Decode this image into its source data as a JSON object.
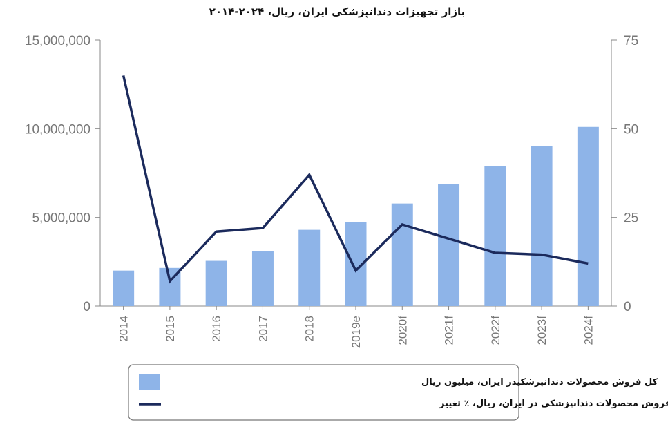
{
  "chart_data": {
    "type": "bar+line",
    "title": "بازار تجهیزات دندانپزشکی ایران، ریال، ۲۰۲۴-۲۰۱۴",
    "categories": [
      "2014",
      "2015",
      "2016",
      "2017",
      "2018",
      "2019e",
      "2020f",
      "2021f",
      "2022f",
      "2023f",
      "2024f"
    ],
    "series": [
      {
        "name": "کل فروش محصولات دندانپزشکیدر ایران، میلیون ریال",
        "type": "bar",
        "axis": "left",
        "color": "#8eb4e8",
        "values": [
          2000000,
          2150000,
          2550000,
          3100000,
          4300000,
          4750000,
          5780000,
          6870000,
          7900000,
          9000000,
          10100000
        ]
      },
      {
        "name": "کل فروش محصولات دندانپزشکی در ایران، ریال، ٪ تغییر",
        "type": "line",
        "axis": "right",
        "color": "#1b2a5c",
        "values": [
          65,
          7,
          21,
          22,
          37,
          10,
          23,
          19,
          15,
          14.5,
          12
        ]
      }
    ],
    "y_left": {
      "range": [
        0,
        15000000
      ],
      "ticks": [
        "0",
        "5,000,000",
        "10,000,000",
        "15,000,000"
      ]
    },
    "y_right": {
      "range": [
        0,
        75
      ],
      "ticks": [
        "0",
        "25",
        "50",
        "75"
      ]
    },
    "grid": false,
    "legend_position": "bottom"
  }
}
